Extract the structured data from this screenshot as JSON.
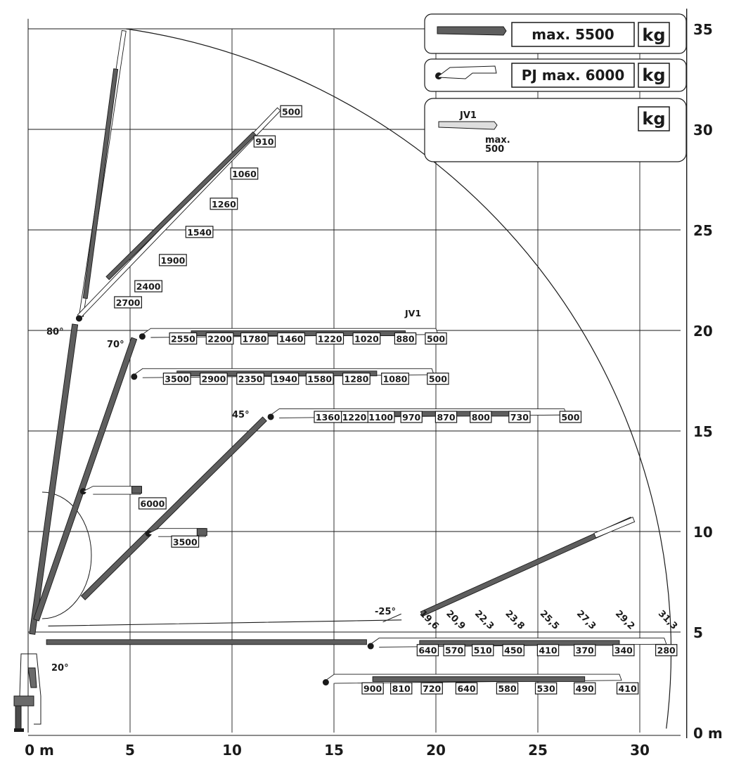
{
  "chart_data": {
    "type": "diagram",
    "x_ticks": [
      "0 m",
      "5",
      "10",
      "15",
      "20",
      "25",
      "30"
    ],
    "y_ticks": [
      "0 m",
      "5",
      "10",
      "15",
      "20",
      "25",
      "30",
      "35"
    ],
    "xlim": [
      0,
      32
    ],
    "ylim": [
      0,
      36
    ],
    "grid": true,
    "max_reach_radius": 31.3,
    "legend": {
      "main_boom": {
        "text": "max. 5500",
        "unit": "kg"
      },
      "jib": {
        "text": "PJ max. 6000",
        "unit": "kg"
      },
      "extension": {
        "name": "JV1",
        "text": "max.\n500",
        "max_line1": "max.",
        "max_line2": "500",
        "unit": "kg"
      }
    },
    "angles": [
      "80°",
      "70°",
      "45°",
      "20°",
      "-25°"
    ],
    "extension_label": "JV1",
    "booms": [
      {
        "id": "jib-80",
        "loads": [
          {
            "x": 12.9,
            "y": 30.9,
            "value": "500"
          },
          {
            "x": 11.6,
            "y": 29.4,
            "value": "910"
          },
          {
            "x": 10.6,
            "y": 27.8,
            "value": "1060"
          },
          {
            "x": 9.6,
            "y": 26.3,
            "value": "1260"
          },
          {
            "x": 8.4,
            "y": 24.9,
            "value": "1540"
          },
          {
            "x": 7.1,
            "y": 23.5,
            "value": "1900"
          },
          {
            "x": 5.9,
            "y": 22.2,
            "value": "2400"
          },
          {
            "x": 4.9,
            "y": 21.4,
            "value": "2700"
          }
        ]
      },
      {
        "id": "jib-70",
        "loads": [
          {
            "x": 20.0,
            "y": 19.6,
            "value": "500"
          },
          {
            "x": 18.5,
            "y": 19.6,
            "value": "880"
          },
          {
            "x": 16.6,
            "y": 19.6,
            "value": "1020"
          },
          {
            "x": 14.8,
            "y": 19.6,
            "value": "1220"
          },
          {
            "x": 12.9,
            "y": 19.6,
            "value": "1460"
          },
          {
            "x": 11.1,
            "y": 19.6,
            "value": "1780"
          },
          {
            "x": 9.4,
            "y": 19.6,
            "value": "2200"
          },
          {
            "x": 7.6,
            "y": 19.6,
            "value": "2550"
          }
        ]
      },
      {
        "id": "jib-70b",
        "loads": [
          {
            "x": 20.1,
            "y": 17.6,
            "value": "500"
          },
          {
            "x": 18.0,
            "y": 17.6,
            "value": "1080"
          },
          {
            "x": 16.1,
            "y": 17.6,
            "value": "1280"
          },
          {
            "x": 14.3,
            "y": 17.6,
            "value": "1580"
          },
          {
            "x": 12.6,
            "y": 17.6,
            "value": "1940"
          },
          {
            "x": 10.9,
            "y": 17.6,
            "value": "2350"
          },
          {
            "x": 9.1,
            "y": 17.6,
            "value": "2900"
          },
          {
            "x": 7.3,
            "y": 17.6,
            "value": "3500"
          }
        ]
      },
      {
        "id": "jib-45",
        "loads": [
          {
            "x": 26.6,
            "y": 15.7,
            "value": "500"
          },
          {
            "x": 24.1,
            "y": 15.7,
            "value": "730"
          },
          {
            "x": 22.2,
            "y": 15.7,
            "value": "800"
          },
          {
            "x": 20.5,
            "y": 15.7,
            "value": "870"
          },
          {
            "x": 18.8,
            "y": 15.7,
            "value": "970"
          },
          {
            "x": 17.3,
            "y": 15.7,
            "value": "1100"
          },
          {
            "x": 16.0,
            "y": 15.7,
            "value": "1220"
          },
          {
            "x": 14.7,
            "y": 15.7,
            "value": "1360"
          }
        ]
      },
      {
        "id": "main-high",
        "loads": [
          {
            "x": 6.1,
            "y": 11.4,
            "value": "6000"
          }
        ]
      },
      {
        "id": "main-mid",
        "loads": [
          {
            "x": 7.7,
            "y": 9.5,
            "value": "3500"
          }
        ]
      },
      {
        "id": "jib-horizontal",
        "loads": [
          {
            "x": 31.3,
            "y": 4.1,
            "value": "280"
          },
          {
            "x": 29.2,
            "y": 4.1,
            "value": "340"
          },
          {
            "x": 27.3,
            "y": 4.1,
            "value": "370"
          },
          {
            "x": 25.5,
            "y": 4.1,
            "value": "410"
          },
          {
            "x": 23.8,
            "y": 4.1,
            "value": "450"
          },
          {
            "x": 22.3,
            "y": 4.1,
            "value": "510"
          },
          {
            "x": 20.9,
            "y": 4.1,
            "value": "570"
          },
          {
            "x": 19.6,
            "y": 4.1,
            "value": "640"
          }
        ]
      },
      {
        "id": "jib-low",
        "loads": [
          {
            "x": 29.4,
            "y": 2.2,
            "value": "410"
          },
          {
            "x": 27.3,
            "y": 2.2,
            "value": "490"
          },
          {
            "x": 25.4,
            "y": 2.2,
            "value": "530"
          },
          {
            "x": 23.5,
            "y": 2.2,
            "value": "580"
          },
          {
            "x": 21.5,
            "y": 2.2,
            "value": "640"
          },
          {
            "x": 19.8,
            "y": 2.2,
            "value": "720"
          },
          {
            "x": 18.3,
            "y": 2.2,
            "value": "810"
          },
          {
            "x": 16.9,
            "y": 2.2,
            "value": "900"
          }
        ]
      }
    ],
    "reach_labels": [
      "19,6",
      "20,9",
      "22,3",
      "23,8",
      "25,5",
      "27,3",
      "29,2",
      "31,3"
    ]
  }
}
